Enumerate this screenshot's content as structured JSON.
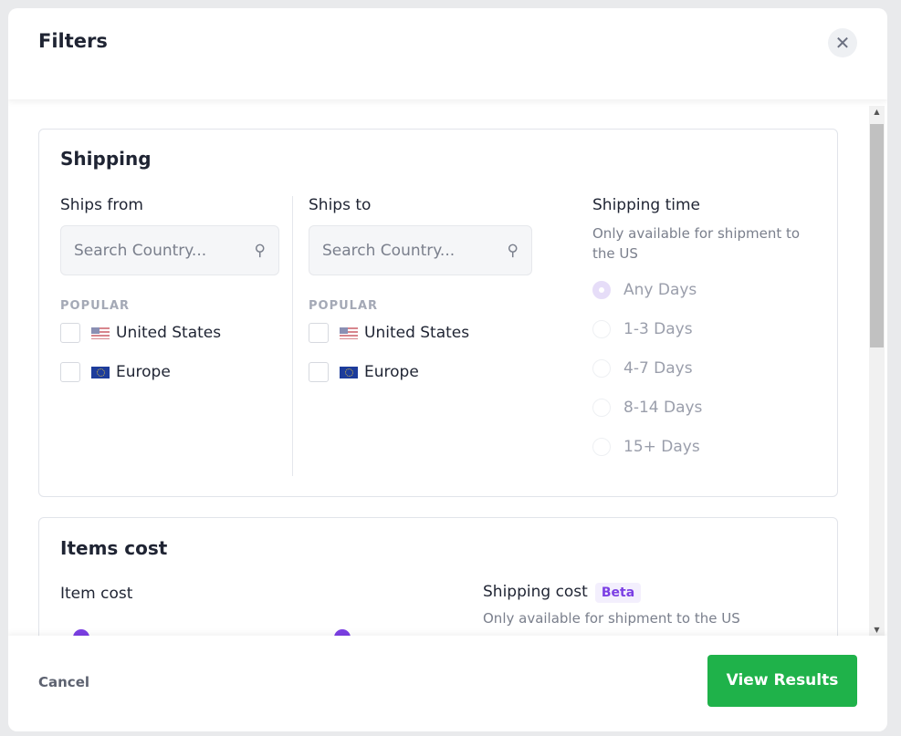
{
  "modal": {
    "title": "Filters",
    "close_icon": "close-icon"
  },
  "shipping": {
    "title": "Shipping",
    "ships_from": {
      "label": "Ships from",
      "placeholder": "Search Country...",
      "popular": "POPULAR",
      "options": [
        "United States",
        "Europe"
      ]
    },
    "ships_to": {
      "label": "Ships to",
      "placeholder": "Search Country...",
      "popular": "POPULAR",
      "options": [
        "United States",
        "Europe"
      ]
    },
    "time": {
      "label": "Shipping time",
      "note": "Only available for shipment to the US",
      "options": [
        "Any Days",
        "1-3 Days",
        "4-7 Days",
        "8-14 Days",
        "15+ Days"
      ],
      "selected": "Any Days"
    }
  },
  "items_cost": {
    "title": "Items cost",
    "item_cost": "Item cost",
    "shipping_cost": "Shipping cost",
    "badge": "Beta",
    "note": "Only available for shipment to the US"
  },
  "footer": {
    "cancel": "Cancel",
    "view": "View Results"
  },
  "colors": {
    "accent": "#7b3fe4",
    "primary": "#1fb24a"
  }
}
